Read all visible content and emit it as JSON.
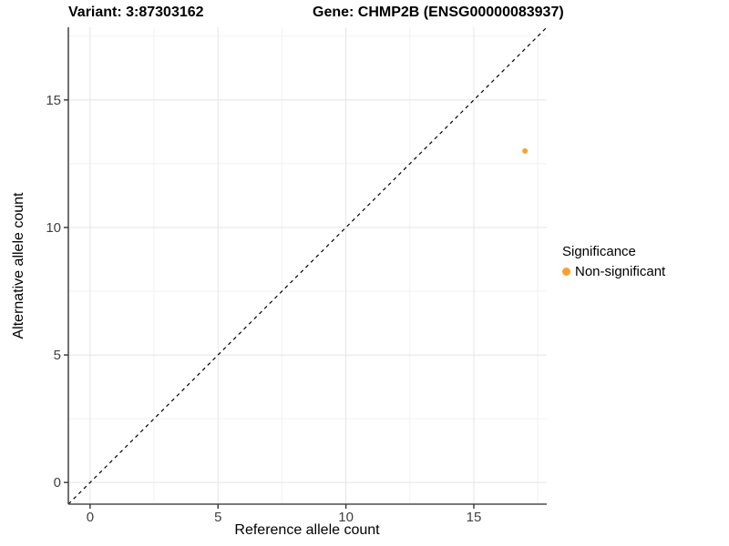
{
  "titles": {
    "variant": "Variant: 3:87303162",
    "gene": "Gene: CHMP2B (ENSG00000083937)"
  },
  "chart_data": {
    "type": "scatter",
    "xlabel": "Reference allele count",
    "ylabel": "Alternative allele count",
    "xlim": [
      -0.85,
      17.85
    ],
    "ylim": [
      -0.85,
      17.85
    ],
    "major_ticks": [
      0,
      5,
      10,
      15
    ],
    "minor_ticks": [
      2.5,
      7.5,
      12.5,
      17.5
    ],
    "grid": true,
    "points": [
      {
        "x": 17,
        "y": 13,
        "series": "Non-significant"
      }
    ],
    "reference_line": {
      "type": "identity",
      "style": "dashed",
      "from": -0.85,
      "to": 17.85
    },
    "legend": {
      "title": "Significance",
      "position": "right",
      "items": [
        {
          "label": "Non-significant",
          "color": "#FAA12C"
        }
      ]
    }
  },
  "colors": {
    "point": "#FAA12C",
    "grid_major": "#e4e4e4",
    "grid_minor": "#f2f2f2",
    "axis_line": "#4d4d4d",
    "tick_mark": "#333333",
    "tick_text": "#404040",
    "diagonal": "#000000"
  }
}
